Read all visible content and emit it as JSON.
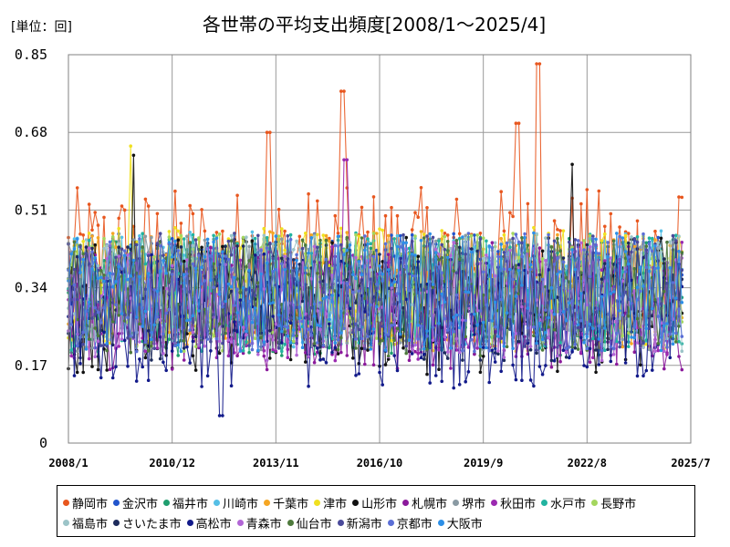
{
  "chart_data": {
    "type": "line",
    "title": "各世帯の平均支出頻度[2008/1～2025/4]",
    "unit_label": "[単位：回]",
    "ylim": [
      0,
      0.85
    ],
    "y_ticks": [
      "0",
      "0.17",
      "0.34",
      "0.51",
      "0.68",
      "0.85"
    ],
    "y_tick_values": [
      0,
      0.17,
      0.34,
      0.51,
      0.68,
      0.85
    ],
    "x_ticks": [
      "2008/1",
      "2010/12",
      "2013/11",
      "2016/10",
      "2019/9",
      "2022/8",
      "2025/7"
    ],
    "grid": true,
    "legend_position": "bottom",
    "series": [
      {
        "name": "静岡市",
        "color": "#e8571f",
        "base": 0.4,
        "amp": 0.16,
        "peaks": [
          [
            0.755,
            0.83
          ],
          [
            0.72,
            0.7
          ],
          [
            0.44,
            0.77
          ],
          [
            0.32,
            0.68
          ]
        ]
      },
      {
        "name": "金沢市",
        "color": "#2255cc",
        "base": 0.33,
        "amp": 0.13,
        "peaks": []
      },
      {
        "name": "福井市",
        "color": "#1f9e6e",
        "base": 0.32,
        "amp": 0.13,
        "peaks": []
      },
      {
        "name": "川崎市",
        "color": "#55bfe6",
        "base": 0.34,
        "amp": 0.13,
        "peaks": []
      },
      {
        "name": "千葉市",
        "color": "#f5a623",
        "base": 0.34,
        "amp": 0.13,
        "peaks": []
      },
      {
        "name": "津市",
        "color": "#f0e020",
        "base": 0.34,
        "amp": 0.14,
        "peaks": [
          [
            0.1,
            0.65
          ]
        ]
      },
      {
        "name": "山形市",
        "color": "#111111",
        "base": 0.3,
        "amp": 0.15,
        "peaks": [
          [
            0.105,
            0.63
          ],
          [
            0.81,
            0.61
          ]
        ]
      },
      {
        "name": "札幌市",
        "color": "#8b1a9b",
        "base": 0.3,
        "amp": 0.14,
        "peaks": []
      },
      {
        "name": "堺市",
        "color": "#8a9aa3",
        "base": 0.33,
        "amp": 0.13,
        "peaks": []
      },
      {
        "name": "秋田市",
        "color": "#9b2ab0",
        "base": 0.31,
        "amp": 0.13,
        "peaks": [
          [
            0.446,
            0.62
          ]
        ]
      },
      {
        "name": "水戸市",
        "color": "#22b3a0",
        "base": 0.33,
        "amp": 0.13,
        "peaks": []
      },
      {
        "name": "長野市",
        "color": "#a4d65e",
        "base": 0.33,
        "amp": 0.13,
        "peaks": []
      },
      {
        "name": "福島市",
        "color": "#9cc4c8",
        "base": 0.33,
        "amp": 0.13,
        "peaks": []
      },
      {
        "name": "さいたま市",
        "color": "#1d2b5c",
        "base": 0.31,
        "amp": 0.13,
        "peaks": []
      },
      {
        "name": "高松市",
        "color": "#121a8a",
        "base": 0.27,
        "amp": 0.15,
        "peaks": [
          [
            0.245,
            0.06
          ]
        ]
      },
      {
        "name": "青森市",
        "color": "#b266d6",
        "base": 0.31,
        "amp": 0.13,
        "peaks": []
      },
      {
        "name": "仙台市",
        "color": "#4e7a3c",
        "base": 0.32,
        "amp": 0.13,
        "peaks": []
      },
      {
        "name": "新潟市",
        "color": "#4a4a9a",
        "base": 0.33,
        "amp": 0.13,
        "peaks": []
      },
      {
        "name": "京都市",
        "color": "#5b6fd6",
        "base": 0.33,
        "amp": 0.13,
        "peaks": []
      },
      {
        "name": "大阪市",
        "color": "#2d8fe6",
        "base": 0.33,
        "amp": 0.13,
        "peaks": []
      }
    ]
  }
}
